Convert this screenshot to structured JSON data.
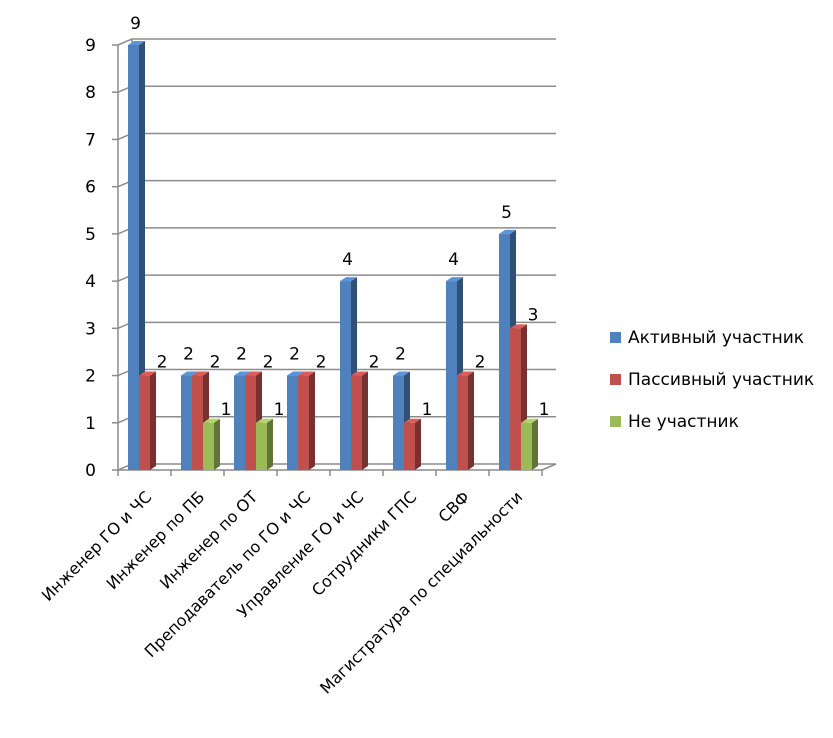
{
  "chart_data": {
    "type": "bar",
    "categories": [
      "Инженер  ГО и ЧС",
      "Инженер по ПБ",
      "Инженер по ОТ",
      "Преподаватель по ГО и ЧС",
      "Управление ГО и ЧС",
      "Сотрудники ГПС",
      "СВФ",
      "Магистратура  по специальности"
    ],
    "series": [
      {
        "name": "Активный участник",
        "color": "#4F81BD",
        "values": [
          9,
          2,
          2,
          2,
          4,
          2,
          4,
          5
        ]
      },
      {
        "name": "Пассивный участник",
        "color": "#C0504D",
        "values": [
          2,
          2,
          2,
          2,
          2,
          1,
          2,
          3
        ]
      },
      {
        "name": "Не участник",
        "color": "#9BBB59",
        "values": [
          null,
          1,
          1,
          null,
          null,
          null,
          null,
          1
        ]
      }
    ],
    "y_ticks": [
      "0",
      "1",
      "2",
      "3",
      "4",
      "5",
      "6",
      "7",
      "8",
      "9"
    ],
    "ylim": [
      0,
      9
    ],
    "grid": true,
    "legend_position": "right",
    "data_labels": true
  }
}
